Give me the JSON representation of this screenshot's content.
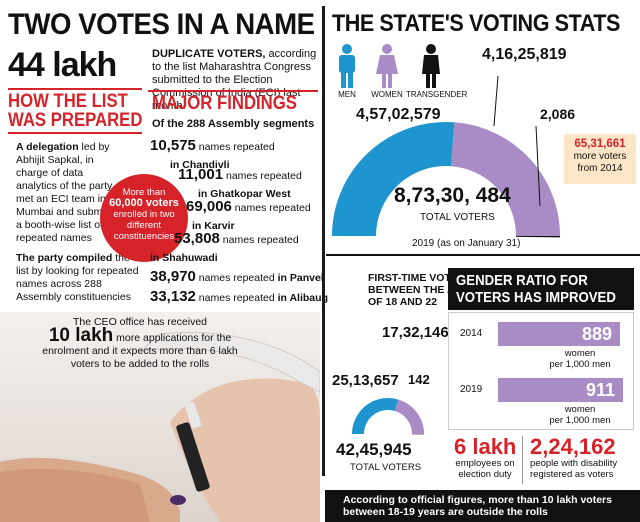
{
  "left": {
    "headline": "TWO VOTES IN A NAME",
    "big_number": "44 lakh",
    "dup_bold": "DUPLICATE VOTERS,",
    "dup_text": " according to the list Maharashtra Congress submitted to the Election Commission of India (ECI) last month.",
    "how_head_1": "HOW THE LIST",
    "how_head_2": "WAS PREPARED",
    "deleg_bold": "A delegation",
    "deleg_text": " led by Abhijit Sapkal, in charge of data analytics of the party, met an ECI team in Mumbai and submitted a booth-wise list of repeated names",
    "party_bold": "The party compiled",
    "party_text": " the list by looking for repeated names across 288 Assembly constituencies",
    "circle_line1": "More than",
    "circle_big": "60,000 voters",
    "circle_line2": "enrolled in two different constituencies",
    "major_head": "MAJOR FINDINGS",
    "major_sub": "Of the 288 Assembly segments",
    "findings": [
      {
        "num": "10,575",
        "text": " names repeated",
        "place": "in Chandivli"
      },
      {
        "num": "11,001",
        "text": " names repeated",
        "place": "in Ghatkopar West"
      },
      {
        "num": "69,006",
        "text": " names repeated",
        "place": "in Karvir"
      },
      {
        "num": "53,808",
        "text": " names repeated",
        "place": "in Shahuwadi"
      },
      {
        "num": "38,970",
        "text": " names repeated",
        "place": " in Panvel"
      },
      {
        "num": "33,132",
        "text": " names repeated",
        "place": " in Alibaug"
      }
    ],
    "ceo_line1": "The CEO office has received",
    "ceo_big": "10 lakh",
    "ceo_line2": " more applications for the enrolment and it expects more than 6 lakh voters to be added to the rolls"
  },
  "right": {
    "headline": "THE STATE'S VOTING STATS",
    "men_label": "MEN",
    "women_label": "WOMEN",
    "trans_label": "TRANSGENDER",
    "men_count": "4,57,02,579",
    "women_count": "4,16,25,819",
    "trans_count": "2,086",
    "total_count": "8,73,30, 484",
    "total_label": "TOTAL VOTERS",
    "date_note": "2019  (as on January 31)",
    "more_voters_num": "65,31,661",
    "more_voters_text": "more voters from 2014",
    "first_time_head": "FIRST-TIME VOTERS BETWEEN THE AGES OF 18 AND 22",
    "ft_women": "17,32,146",
    "ft_men": "25,13,657",
    "ft_trans": "142",
    "ft_total": "42,45,945",
    "ft_total_label": "TOTAL VOTERS",
    "gender_head_1": "GENDER RATIO FOR",
    "gender_head_2": "VOTERS HAS IMPROVED",
    "ratio_rows": [
      {
        "year": "2014",
        "value": "889",
        "note1": "women",
        "note2": "per 1,000 men"
      },
      {
        "year": "2019",
        "value": "911",
        "note1": "women",
        "note2": "per 1,000 men"
      }
    ],
    "staff_num": "6 lakh",
    "staff_text": "employees on election duty",
    "disab_num": "2,24,162",
    "disab_text": "people with disability registered as voters",
    "bottom_note": "According to official figures, more than 10 lakh voters between 18-19 years are outside the rolls"
  },
  "colors": {
    "red": "#d6232a",
    "men_blue": "#1f95cf",
    "women_purple": "#a98bc6",
    "trans_black": "#111111",
    "note_box": "#fde6c8"
  },
  "chart_data": [
    {
      "type": "pie",
      "title": "THE STATE'S VOTING STATS",
      "categories": [
        "MEN",
        "WOMEN",
        "TRANSGENDER"
      ],
      "values": [
        45702579,
        41625819,
        2086
      ],
      "total": 87330484
    },
    {
      "type": "pie",
      "title": "FIRST-TIME VOTERS BETWEEN THE AGES OF 18 AND 22",
      "categories": [
        "MEN",
        "WOMEN",
        "TRANSGENDER"
      ],
      "values": [
        2513657,
        1732146,
        142
      ],
      "total": 4245945
    },
    {
      "type": "bar",
      "title": "GENDER RATIO FOR VOTERS HAS IMPROVED",
      "categories": [
        "2014",
        "2019"
      ],
      "values": [
        889,
        911
      ]
    }
  ]
}
